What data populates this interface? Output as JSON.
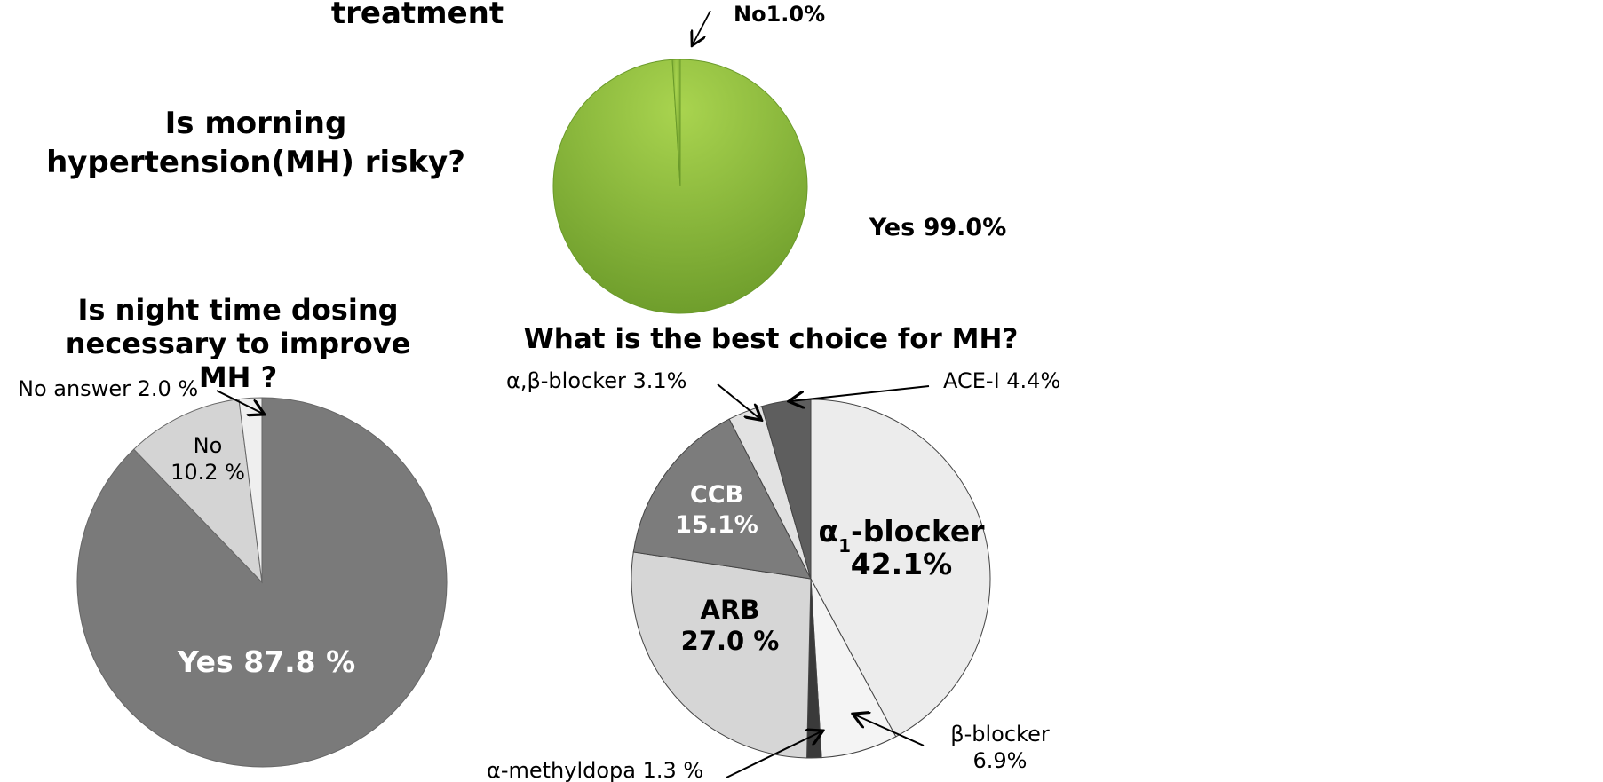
{
  "chart_data": [
    {
      "type": "pie",
      "title": "Is morning hypertension(MH) risky?",
      "partial_title_above": "treatment",
      "slices": [
        {
          "label": "Yes",
          "value": 99.0,
          "text": "Yes 99.0%",
          "color": "#8fc33a"
        },
        {
          "label": "No",
          "value": 1.0,
          "text": "No1.0%",
          "color": "#8fc33a"
        }
      ]
    },
    {
      "type": "pie",
      "title": "Is night time dosing necessary to improve MH ?",
      "title_lines": [
        "Is night time dosing",
        "necessary to improve",
        "MH ?"
      ],
      "slices": [
        {
          "label": "No answer",
          "value": 2.0,
          "text": "No answer 2.0 %",
          "color": "#efefef"
        },
        {
          "label": "No",
          "value": 10.2,
          "text_lines": [
            "No",
            "10.2 %"
          ],
          "color": "#d4d4d4"
        },
        {
          "label": "Yes",
          "value": 87.8,
          "text": "Yes 87.8 %",
          "color": "#7a7a7a"
        }
      ]
    },
    {
      "type": "pie",
      "title": "What is the best choice for MH?",
      "slices": [
        {
          "label": "α1-blocker",
          "value": 42.1,
          "text_main": "α",
          "text_sub": "1",
          "text_rest": "-blocker",
          "pct": "42.1%",
          "color": "#ececec"
        },
        {
          "label": "β-blocker",
          "value": 6.9,
          "text_lines": [
            "β-blocker",
            "6.9%"
          ],
          "color": "#f4f4f4"
        },
        {
          "label": "α-methyldopa",
          "value": 1.3,
          "text": "α-methyldopa 1.3 %",
          "color": "#3a3a3a"
        },
        {
          "label": "ARB",
          "value": 27.0,
          "text_lines": [
            "ARB",
            "27.0 %"
          ],
          "color": "#d6d6d6"
        },
        {
          "label": "CCB",
          "value": 15.1,
          "text_lines": [
            "CCB",
            "15.1%"
          ],
          "color": "#7c7c7c"
        },
        {
          "label": "α,β-blocker",
          "value": 3.1,
          "text": "α,β-blocker 3.1%",
          "color": "#e2e2e2"
        },
        {
          "label": "ACE-I",
          "value": 4.4,
          "text": "ACE-I 4.4%",
          "color": "#5e5e5e"
        }
      ]
    }
  ]
}
